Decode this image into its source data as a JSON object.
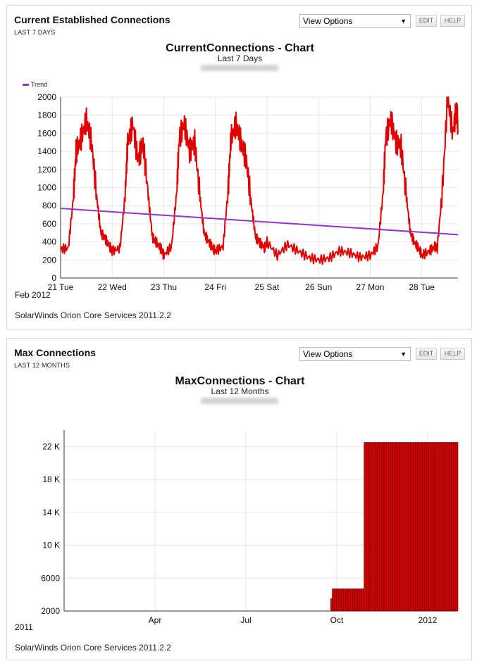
{
  "panels": [
    {
      "title": "Current Established Connections",
      "subtitle": "LAST 7 DAYS",
      "view_options": "View Options",
      "edit": "EDIT",
      "help": "HELP",
      "chart_title": "CurrentConnections - Chart",
      "chart_subtitle": "Last 7 Days",
      "legend_label": "Trend",
      "axis_note": "Feb 2012",
      "footer": "SolarWinds Orion Core Services 2011.2.2"
    },
    {
      "title": "Max Connections",
      "subtitle": "LAST 12 MONTHS",
      "view_options": "View Options",
      "edit": "EDIT",
      "help": "HELP",
      "chart_title": "MaxConnections - Chart",
      "chart_subtitle": "Last 12 Months",
      "axis_note": "2011",
      "footer": "SolarWinds Orion Core Services 2011.2.2"
    }
  ],
  "colors": {
    "series": "#e00000",
    "trend": "#9b30d0",
    "bar_fill": "#d40000",
    "bar_edge": "#5a0000",
    "grid": "#e6e6e6"
  },
  "chart_data": [
    {
      "type": "line",
      "title": "CurrentConnections - Chart",
      "subtitle": "Last 7 Days",
      "x_tick_labels": [
        "21 Tue",
        "22 Wed",
        "23 Thu",
        "24 Fri",
        "25 Sat",
        "26 Sun",
        "27 Mon",
        "28 Tue"
      ],
      "y_tick_labels": [
        "0",
        "200",
        "400",
        "600",
        "800",
        "1000",
        "1200",
        "1400",
        "1600",
        "1800",
        "2000"
      ],
      "ylim": [
        0,
        2000
      ],
      "xlim_days": [
        0,
        7.7
      ],
      "grid": true,
      "series": [
        {
          "name": "",
          "description": "daily connections pattern",
          "x_days": [
            0.0,
            0.15,
            0.25,
            0.3,
            0.4,
            0.5,
            0.6,
            0.7,
            0.78,
            0.85,
            0.95,
            1.0,
            1.15,
            1.25,
            1.3,
            1.4,
            1.5,
            1.6,
            1.7,
            1.78,
            1.85,
            1.95,
            2.0,
            2.15,
            2.25,
            2.3,
            2.4,
            2.5,
            2.6,
            2.7,
            2.78,
            2.85,
            2.95,
            3.0,
            3.15,
            3.25,
            3.3,
            3.4,
            3.5,
            3.6,
            3.7,
            3.78,
            3.85,
            3.95,
            4.0,
            4.2,
            4.4,
            4.6,
            4.8,
            5.0,
            5.2,
            5.4,
            5.6,
            5.8,
            6.0,
            6.15,
            6.25,
            6.3,
            6.4,
            6.5,
            6.6,
            6.7,
            6.78,
            6.85,
            6.95,
            7.0,
            7.15,
            7.25,
            7.3,
            7.4,
            7.5,
            7.6,
            7.68,
            7.7
          ],
          "y": [
            320,
            330,
            900,
            1400,
            1550,
            1750,
            1500,
            900,
            500,
            450,
            350,
            300,
            330,
            900,
            1500,
            1700,
            1300,
            1500,
            900,
            450,
            400,
            320,
            250,
            350,
            950,
            1550,
            1700,
            1400,
            1500,
            900,
            500,
            420,
            330,
            300,
            350,
            1000,
            1550,
            1700,
            1500,
            1300,
            800,
            450,
            400,
            330,
            400,
            250,
            370,
            300,
            230,
            200,
            220,
            300,
            280,
            230,
            250,
            350,
            950,
            1550,
            1750,
            1500,
            1450,
            900,
            500,
            400,
            320,
            250,
            300,
            350,
            330,
            1000,
            2000,
            1600,
            1900,
            1600
          ]
        },
        {
          "name": "Trend",
          "x_days": [
            0,
            7.7
          ],
          "y": [
            770,
            480
          ]
        }
      ]
    },
    {
      "type": "bar",
      "title": "MaxConnections - Chart",
      "subtitle": "Last 12 Months",
      "x_tick_labels": [
        "Apr",
        "Jul",
        "Oct",
        "2012"
      ],
      "y_tick_labels": [
        "2000",
        "6000",
        "10 K",
        "14 K",
        "18 K",
        "22 K"
      ],
      "ylim": [
        2000,
        24000
      ],
      "grid": true,
      "bars": [
        {
          "start_month": 9.8,
          "end_month": 9.85,
          "value": 3500
        },
        {
          "start_month": 9.85,
          "end_month": 10.9,
          "value": 4700
        },
        {
          "start_month": 10.9,
          "end_month": 12.0,
          "value": 22500
        },
        {
          "start_month": 12.0,
          "end_month": 14.0,
          "value": 22500
        }
      ]
    }
  ]
}
